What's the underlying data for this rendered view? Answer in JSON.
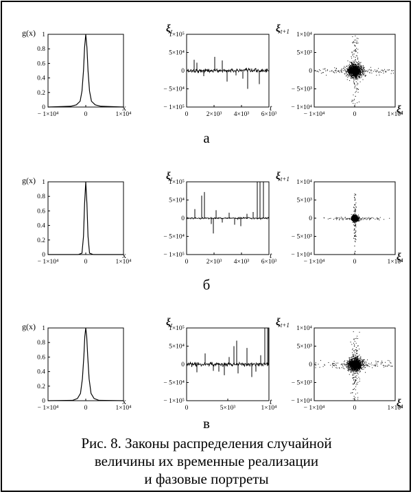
{
  "caption": {
    "line1": "Рис. 8. Законы распределения случайной",
    "line2": "величины их временные реализации",
    "line3": "и фазовые портреты"
  },
  "chart_data": [
    {
      "row": "а",
      "density": {
        "type": "line",
        "ylabel": "g(x)",
        "xlabel": "x",
        "xlim": [
          -10000,
          10000
        ],
        "ylim": [
          0,
          1
        ],
        "x_ticks": [
          "− 1×10⁴",
          "0",
          "1×10⁴"
        ],
        "y_ticks": [
          "0",
          "0.2",
          "0.4",
          "0.6",
          "0.8",
          "1"
        ],
        "x": [
          -10000,
          -4000,
          -2500,
          -1500,
          -1000,
          -600,
          -300,
          0,
          300,
          600,
          1000,
          1500,
          2500,
          4000,
          10000
        ],
        "y": [
          0,
          0.01,
          0.03,
          0.08,
          0.22,
          0.5,
          0.82,
          1.0,
          0.82,
          0.5,
          0.22,
          0.08,
          0.03,
          0.01,
          0
        ]
      },
      "series": {
        "type": "line",
        "ylabel": "ξt",
        "xlabel": "t",
        "xlim": [
          0,
          6000
        ],
        "ylim": [
          -100000,
          100000
        ],
        "x_ticks": [
          "0",
          "2×10³",
          "4×10³",
          "6×10³"
        ],
        "y_ticks": [
          "1×10⁵",
          "5×10⁴",
          "0",
          "− 5×10⁴",
          "− 1×10⁵"
        ],
        "noise_amplitude": 6000,
        "spikes": [
          [
            550,
            30000
          ],
          [
            750,
            22000
          ],
          [
            1250,
            -15000
          ],
          [
            2050,
            38000
          ],
          [
            2600,
            28000
          ],
          [
            2950,
            -30000
          ],
          [
            3600,
            -13000
          ],
          [
            4100,
            -22000
          ],
          [
            4450,
            -50000
          ],
          [
            5300,
            -37000
          ]
        ]
      },
      "phase": {
        "type": "scatter",
        "ylabel": "ξt+1",
        "xlabel": "ξt",
        "xlim": [
          -10000,
          10000
        ],
        "ylim": [
          -10000,
          10000
        ],
        "x_ticks": [
          "− 1×10⁴",
          "0",
          "1×10⁴"
        ],
        "y_ticks": [
          "1×10⁴",
          "5×10³",
          "0",
          "− 5×10³",
          "− 1×10⁴"
        ],
        "core_spread": 900,
        "tail_spread": 5500,
        "tail_fraction": 0.22
      }
    },
    {
      "row": "б",
      "density": {
        "type": "line",
        "ylabel": "g(x)",
        "xlabel": "x",
        "xlim": [
          -10000,
          10000
        ],
        "ylim": [
          0,
          1
        ],
        "x_ticks": [
          "− 1×10⁴",
          "0",
          "1×10⁴"
        ],
        "y_ticks": [
          "0",
          "0.2",
          "0.4",
          "0.6",
          "0.8",
          "1"
        ],
        "x": [
          -10000,
          -2000,
          -1000,
          -600,
          -300,
          0,
          300,
          600,
          1000,
          2000,
          10000
        ],
        "y": [
          0,
          0.0,
          0.02,
          0.25,
          0.7,
          1.0,
          0.7,
          0.25,
          0.02,
          0.0,
          0
        ]
      },
      "series": {
        "type": "line",
        "ylabel": "ξt",
        "xlabel": "t",
        "xlim": [
          0,
          6000
        ],
        "ylim": [
          -100000,
          100000
        ],
        "x_ticks": [
          "0",
          "2×10³",
          "4×10³",
          "6×10³"
        ],
        "y_ticks": [
          "1×10⁵",
          "5×10⁴",
          "0",
          "− 5×10⁴",
          "− 1×10⁵"
        ],
        "noise_amplitude": 2500,
        "spikes": [
          [
            600,
            25000
          ],
          [
            1100,
            62000
          ],
          [
            1300,
            72000
          ],
          [
            1800,
            -16000
          ],
          [
            1950,
            -42000
          ],
          [
            2150,
            22000
          ],
          [
            2600,
            -12000
          ],
          [
            3100,
            15000
          ],
          [
            3500,
            -18000
          ],
          [
            3950,
            -22000
          ],
          [
            4400,
            12000
          ],
          [
            4850,
            17000
          ],
          [
            5150,
            100000
          ],
          [
            5350,
            100000
          ],
          [
            5600,
            100000
          ]
        ]
      },
      "phase": {
        "type": "scatter",
        "ylabel": "ξt+1",
        "xlabel": "ξt",
        "xlim": [
          -10000,
          10000
        ],
        "ylim": [
          -10000,
          10000
        ],
        "x_ticks": [
          "− 1×10⁴",
          "0",
          "1×10⁴"
        ],
        "y_ticks": [
          "1×10⁴",
          "5×10³",
          "0",
          "− 5×10³",
          "− 1×10⁴"
        ],
        "core_spread": 350,
        "tail_spread": 3500,
        "tail_fraction": 0.12
      }
    },
    {
      "row": "в",
      "density": {
        "type": "line",
        "ylabel": "g(x)",
        "xlabel": "x",
        "xlim": [
          -10000,
          10000
        ],
        "ylim": [
          0,
          1
        ],
        "x_ticks": [
          "− 1×10⁴",
          "0",
          "1×10⁴"
        ],
        "y_ticks": [
          "0",
          "0.2",
          "0.4",
          "0.6",
          "0.8",
          "1"
        ],
        "x": [
          -10000,
          -3500,
          -2200,
          -1400,
          -900,
          -500,
          -250,
          0,
          250,
          500,
          900,
          1400,
          2200,
          3500,
          10000
        ],
        "y": [
          0,
          0.005,
          0.03,
          0.1,
          0.3,
          0.62,
          0.88,
          1.0,
          0.88,
          0.62,
          0.3,
          0.1,
          0.03,
          0.005,
          0
        ]
      },
      "series": {
        "type": "line",
        "ylabel": "ξt",
        "xlabel": "t",
        "xlim": [
          0,
          12000
        ],
        "ylim": [
          -100000,
          100000
        ],
        "x_ticks": [
          "0",
          "5×10³",
          "1×10⁴"
        ],
        "y_ticks": [
          "1×10⁵",
          "5×10⁴",
          "0",
          "− 5×10⁴",
          "− 1×10⁵"
        ],
        "noise_amplitude": 6000,
        "spikes": [
          [
            1500,
            -22000
          ],
          [
            2700,
            30000
          ],
          [
            3900,
            -18000
          ],
          [
            4700,
            -20000
          ],
          [
            5500,
            -30000
          ],
          [
            6200,
            20000
          ],
          [
            6900,
            50000
          ],
          [
            7300,
            65000
          ],
          [
            7500,
            -25000
          ],
          [
            8800,
            45000
          ],
          [
            9500,
            -35000
          ],
          [
            10100,
            -20000
          ],
          [
            10800,
            25000
          ],
          [
            11400,
            100000
          ],
          [
            11800,
            100000
          ],
          [
            11950,
            100000
          ]
        ]
      },
      "phase": {
        "type": "scatter",
        "ylabel": "ξt+1",
        "xlabel": "ξt",
        "xlim": [
          -10000,
          10000
        ],
        "ylim": [
          -10000,
          10000
        ],
        "x_ticks": [
          "− 1×10⁴",
          "0",
          "1×10⁴"
        ],
        "y_ticks": [
          "1×10⁴",
          "5×10³",
          "0",
          "− 5×10³",
          "− 1×10⁴"
        ],
        "core_spread": 900,
        "tail_spread": 5500,
        "tail_fraction": 0.22
      }
    }
  ]
}
